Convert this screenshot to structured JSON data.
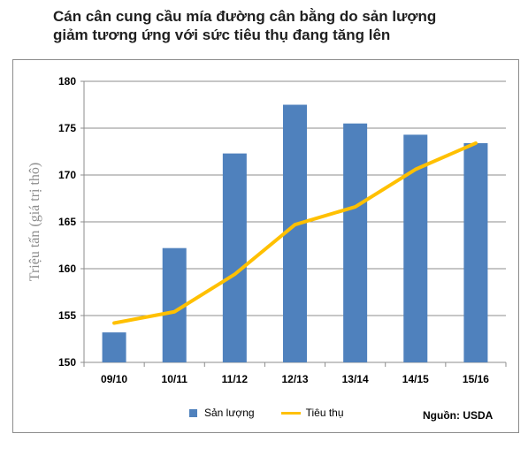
{
  "title_lines": [
    "Cán cân cung cầu mía đường cân bằng do sản lượng",
    "giảm tương ứng với sức tiêu thụ đang tăng lên"
  ],
  "source": "Nguồn: USDA",
  "chart_data": {
    "type": "bar",
    "categories": [
      "09/10",
      "10/11",
      "11/12",
      "12/13",
      "13/14",
      "14/15",
      "15/16"
    ],
    "ylabel": "Triệu tấn (giá trị thô)",
    "ylim": [
      150,
      180
    ],
    "yticks": [
      150,
      155,
      160,
      165,
      170,
      175,
      180
    ],
    "grid": true,
    "legend_position": "bottom",
    "series": [
      {
        "name": "Sản lượng",
        "type": "bar",
        "color": "#4f81bd",
        "values": [
          153.2,
          162.2,
          172.3,
          177.5,
          175.5,
          174.3,
          173.4
        ]
      },
      {
        "name": "Tiêu thụ",
        "type": "line",
        "color": "#ffc000",
        "values": [
          154.2,
          155.4,
          159.4,
          164.7,
          166.6,
          170.6,
          173.4
        ]
      }
    ]
  }
}
